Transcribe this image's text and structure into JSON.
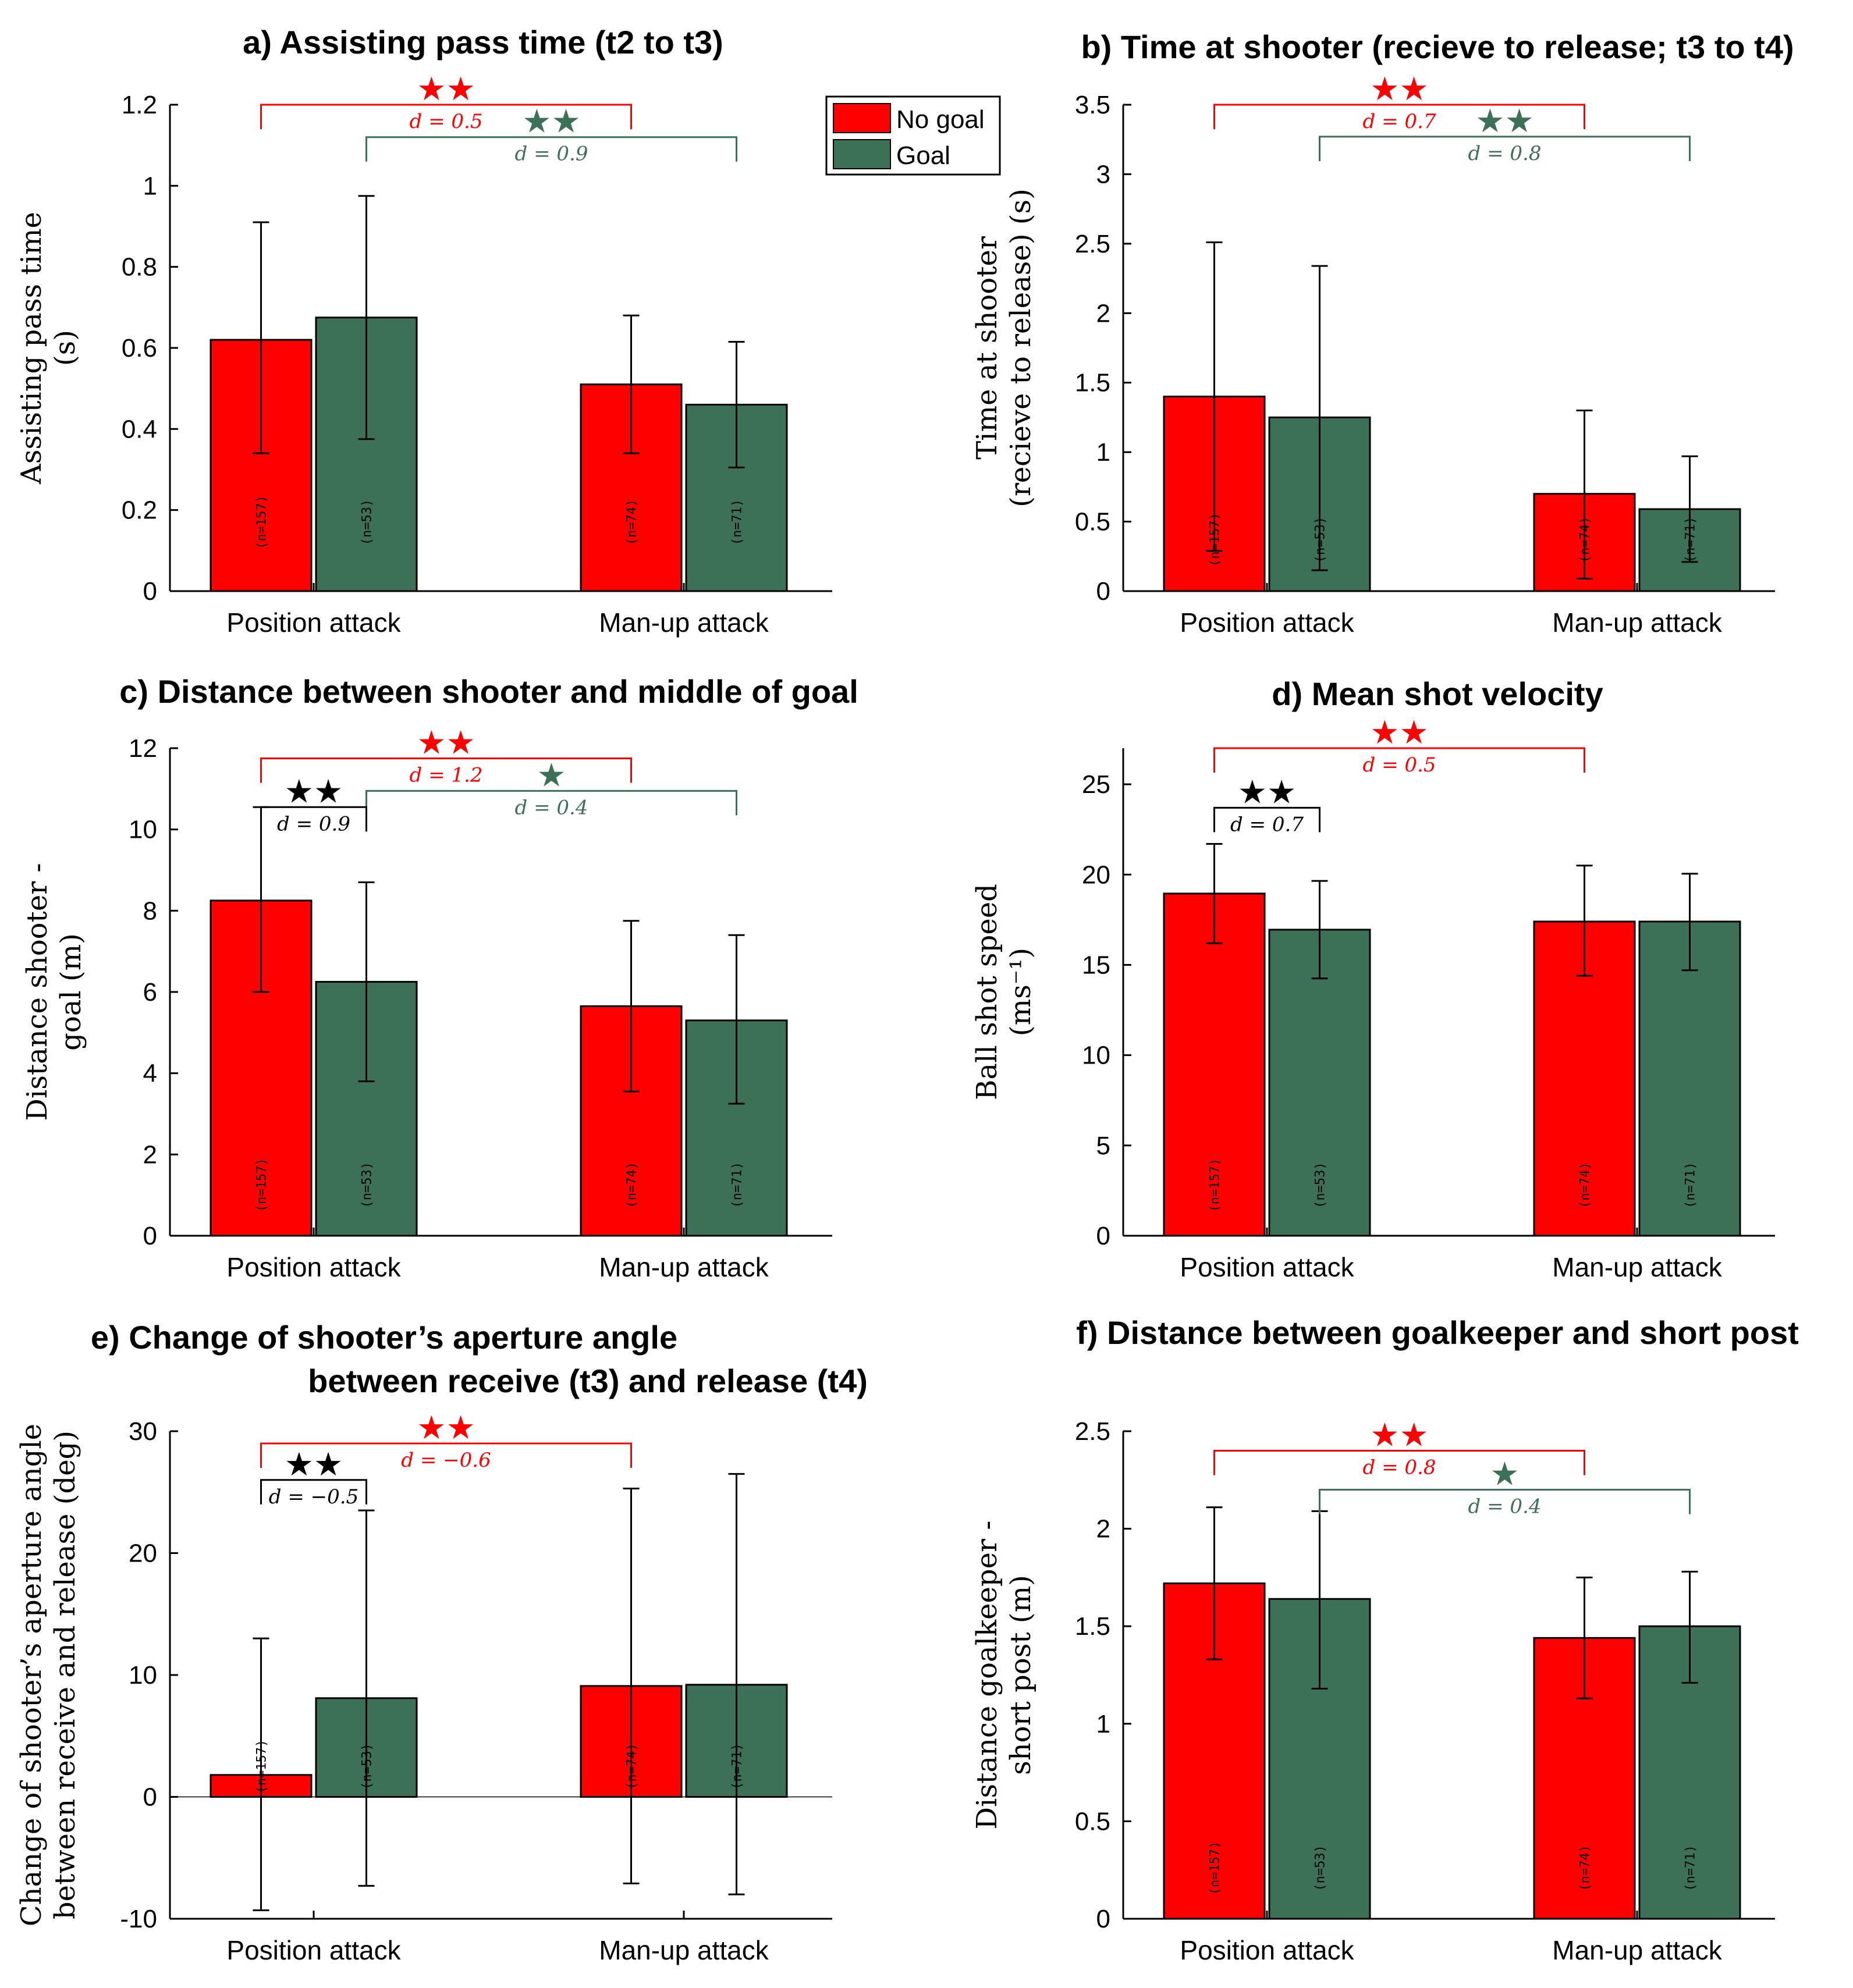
{
  "colors": {
    "no_goal": "#ff0000",
    "goal": "#3d7157",
    "black": "#000000"
  },
  "legend": {
    "no_goal": "No goal",
    "goal": "Goal"
  },
  "chart_data": [
    {
      "id": "a",
      "type": "bar",
      "title": "a) Assisting pass time (t2 to t3)",
      "ylabel_lines": [
        "Assisting pass time",
        "(s)"
      ],
      "ylim": [
        0,
        1.2
      ],
      "yticks": [
        0,
        0.2,
        0.4,
        0.6,
        0.8,
        1,
        1.2
      ],
      "ytick_labels": [
        "0",
        "0.2",
        "0.4",
        "0.6",
        "0.8",
        "1",
        "1.2"
      ],
      "categories": [
        "Position attack",
        "Man-up attack"
      ],
      "series": [
        {
          "name": "No goal",
          "values": [
            0.62,
            0.51
          ],
          "err_low": [
            0.34,
            0.34
          ],
          "err_high": [
            0.91,
            0.68
          ],
          "n": [
            "(n=157)",
            "(n=74)"
          ]
        },
        {
          "name": "Goal",
          "values": [
            0.675,
            0.46
          ],
          "err_low": [
            0.375,
            0.305
          ],
          "err_high": [
            0.975,
            0.615
          ],
          "n": [
            "(n=53)",
            "(n=71)"
          ]
        }
      ],
      "n_pos": 0.17,
      "zero_line": false,
      "brackets": [
        {
          "from": [
            0,
            0
          ],
          "to": [
            1,
            0
          ],
          "y": 1.2,
          "dir": "down",
          "color": "no_goal",
          "stars": "★★",
          "d_label": "d = 0.5"
        },
        {
          "from": [
            0,
            1
          ],
          "to": [
            1,
            1
          ],
          "y": 1.12,
          "dir": "down",
          "color": "goal",
          "stars": "★★",
          "d_label": "d = 0.9"
        }
      ]
    },
    {
      "id": "b",
      "type": "bar",
      "title": "b) Time at shooter (recieve to release; t3 to t4)",
      "ylabel_lines": [
        "Time at shooter",
        "(recieve to release) (s)"
      ],
      "ylim": [
        0,
        3.5
      ],
      "yticks": [
        0,
        0.5,
        1,
        1.5,
        2,
        2.5,
        3,
        3.5
      ],
      "ytick_labels": [
        "0",
        "0.5",
        "1",
        "1.5",
        "2",
        "2.5",
        "3",
        "3.5"
      ],
      "categories": [
        "Position attack",
        "Man-up attack"
      ],
      "series": [
        {
          "name": "No goal",
          "values": [
            1.4,
            0.7
          ],
          "err_low": [
            0.29,
            0.09
          ],
          "err_high": [
            2.51,
            1.3
          ],
          "n": [
            "(n=157)",
            "(n=74)"
          ]
        },
        {
          "name": "Goal",
          "values": [
            1.25,
            0.59
          ],
          "err_low": [
            0.15,
            0.21
          ],
          "err_high": [
            2.34,
            0.97
          ],
          "n": [
            "(n=53)",
            "(n=71)"
          ]
        }
      ],
      "n_pos": 0.37,
      "zero_line": false,
      "brackets": [
        {
          "from": [
            0,
            0
          ],
          "to": [
            1,
            0
          ],
          "y": 3.5,
          "dir": "down",
          "color": "no_goal",
          "stars": "★★",
          "d_label": "d = 0.7"
        },
        {
          "from": [
            0,
            1
          ],
          "to": [
            1,
            1
          ],
          "y": 3.27,
          "dir": "down",
          "color": "goal",
          "stars": "★★",
          "d_label": "d = 0.8"
        }
      ]
    },
    {
      "id": "c",
      "type": "bar",
      "title": "c) Distance between shooter and middle of goal",
      "ylabel_lines": [
        "Distance shooter -",
        "goal (m)"
      ],
      "ylim": [
        0,
        12
      ],
      "yticks": [
        0,
        2,
        4,
        6,
        8,
        10,
        12
      ],
      "ytick_labels": [
        "0",
        "2",
        "4",
        "6",
        "8",
        "10",
        "12"
      ],
      "categories": [
        "Position attack",
        "Man-up attack"
      ],
      "series": [
        {
          "name": "No goal",
          "values": [
            8.25,
            5.65
          ],
          "err_low": [
            6.0,
            3.55
          ],
          "err_high": [
            10.55,
            7.75
          ],
          "n": [
            "(n=157)",
            "(n=74)"
          ]
        },
        {
          "name": "Goal",
          "values": [
            6.25,
            5.3
          ],
          "err_low": [
            3.8,
            3.25
          ],
          "err_high": [
            8.7,
            7.4
          ],
          "n": [
            "(n=53)",
            "(n=71)"
          ]
        }
      ],
      "n_pos": 1.25,
      "zero_line": false,
      "brackets": [
        {
          "from": [
            0,
            0
          ],
          "to": [
            1,
            0
          ],
          "y": 11.75,
          "dir": "down",
          "color": "no_goal",
          "stars": "★★",
          "d_label": "d = 1.2"
        },
        {
          "from": [
            0,
            1
          ],
          "to": [
            1,
            1
          ],
          "y": 10.95,
          "dir": "down",
          "color": "goal",
          "stars": "★",
          "d_label": "d = 0.4"
        },
        {
          "from": [
            0,
            0
          ],
          "to": [
            0,
            1
          ],
          "y": 10.55,
          "dir": "down",
          "color": "black",
          "stars": "★★",
          "d_label": "d = 0.9"
        }
      ]
    },
    {
      "id": "d",
      "type": "bar",
      "title": "d) Mean shot velocity",
      "ylabel_lines": [
        "Ball shot speed",
        "(ms⁻¹)"
      ],
      "ylim": [
        0,
        27
      ],
      "yticks": [
        0,
        5,
        10,
        15,
        20,
        25
      ],
      "ytick_labels": [
        "0",
        "5",
        "10",
        "15",
        "20",
        "25"
      ],
      "categories": [
        "Position attack",
        "Man-up attack"
      ],
      "series": [
        {
          "name": "No goal",
          "values": [
            18.95,
            17.4
          ],
          "err_low": [
            16.2,
            14.4
          ],
          "err_high": [
            21.7,
            20.5
          ],
          "n": [
            "(n=157)",
            "(n=74)"
          ]
        },
        {
          "name": "Goal",
          "values": [
            16.95,
            17.4
          ],
          "err_low": [
            14.25,
            14.7
          ],
          "err_high": [
            19.65,
            20.05
          ],
          "n": [
            "(n=53)",
            "(n=71)"
          ]
        }
      ],
      "n_pos": 2.8,
      "zero_line": false,
      "brackets": [
        {
          "from": [
            0,
            0
          ],
          "to": [
            1,
            0
          ],
          "y": 27.0,
          "dir": "down",
          "color": "no_goal",
          "stars": "★★",
          "d_label": "d = 0.5"
        },
        {
          "from": [
            0,
            0
          ],
          "to": [
            0,
            1
          ],
          "y": 23.7,
          "dir": "down",
          "color": "black",
          "stars": "★★",
          "d_label": "d = 0.7"
        }
      ]
    },
    {
      "id": "e",
      "type": "bar",
      "title": "e) Change of  shooter’s aperture angle",
      "title_line2": "between receive (t3) and release (t4)",
      "ylabel_lines": [
        "Change of shooter’s aperture angle",
        "between receive and release (deg)"
      ],
      "ylim": [
        -10,
        30
      ],
      "yticks": [
        -10,
        0,
        10,
        20,
        30
      ],
      "ytick_labels": [
        "-10",
        "0",
        "10",
        "20",
        "30"
      ],
      "categories": [
        "Position attack",
        "Man-up attack"
      ],
      "series": [
        {
          "name": "No goal",
          "values": [
            1.8,
            9.1
          ],
          "err_low": [
            -9.3,
            -7.1
          ],
          "err_high": [
            13.0,
            25.3
          ],
          "n": [
            "(n=157)",
            "(n=74)"
          ]
        },
        {
          "name": "Goal",
          "values": [
            8.1,
            9.2
          ],
          "err_low": [
            -7.3,
            -8.0
          ],
          "err_high": [
            23.5,
            26.5
          ],
          "n": [
            "(n=53)",
            "(n=71)"
          ]
        }
      ],
      "n_pos": 2.5,
      "zero_line": true,
      "brackets": [
        {
          "from": [
            0,
            0
          ],
          "to": [
            1,
            0
          ],
          "y": 29.0,
          "dir": "down",
          "color": "no_goal",
          "stars": "★★",
          "d_label": "d = −0.6"
        },
        {
          "from": [
            0,
            0
          ],
          "to": [
            0,
            1
          ],
          "y": 26.0,
          "dir": "down",
          "color": "black",
          "stars": "★★",
          "d_label": "d = −0.5"
        }
      ]
    },
    {
      "id": "f",
      "type": "bar",
      "title": "f) Distance between goalkeeper and short post",
      "ylabel_lines": [
        "Distance goalkeeper -",
        "short post (m)"
      ],
      "ylim": [
        0,
        2.5
      ],
      "yticks": [
        0,
        0.5,
        1,
        1.5,
        2,
        2.5
      ],
      "ytick_labels": [
        "0",
        "0.5",
        "1",
        "1.5",
        "2",
        "2.5"
      ],
      "categories": [
        "Position attack",
        "Man-up attack"
      ],
      "series": [
        {
          "name": "No goal",
          "values": [
            1.72,
            1.44
          ],
          "err_low": [
            1.33,
            1.13
          ],
          "err_high": [
            2.11,
            1.75
          ],
          "n": [
            "(n=157)",
            "(n=74)"
          ]
        },
        {
          "name": "Goal",
          "values": [
            1.64,
            1.5
          ],
          "err_low": [
            1.18,
            1.21
          ],
          "err_high": [
            2.09,
            1.78
          ],
          "n": [
            "(n=53)",
            "(n=71)"
          ]
        }
      ],
      "n_pos": 0.26,
      "zero_line": false,
      "brackets": [
        {
          "from": [
            0,
            0
          ],
          "to": [
            1,
            0
          ],
          "y": 2.4,
          "dir": "down",
          "color": "no_goal",
          "stars": "★★",
          "d_label": "d = 0.8"
        },
        {
          "from": [
            0,
            1
          ],
          "to": [
            1,
            1
          ],
          "y": 2.2,
          "dir": "down",
          "color": "goal",
          "stars": "★",
          "d_label": "d = 0.4"
        }
      ]
    }
  ]
}
